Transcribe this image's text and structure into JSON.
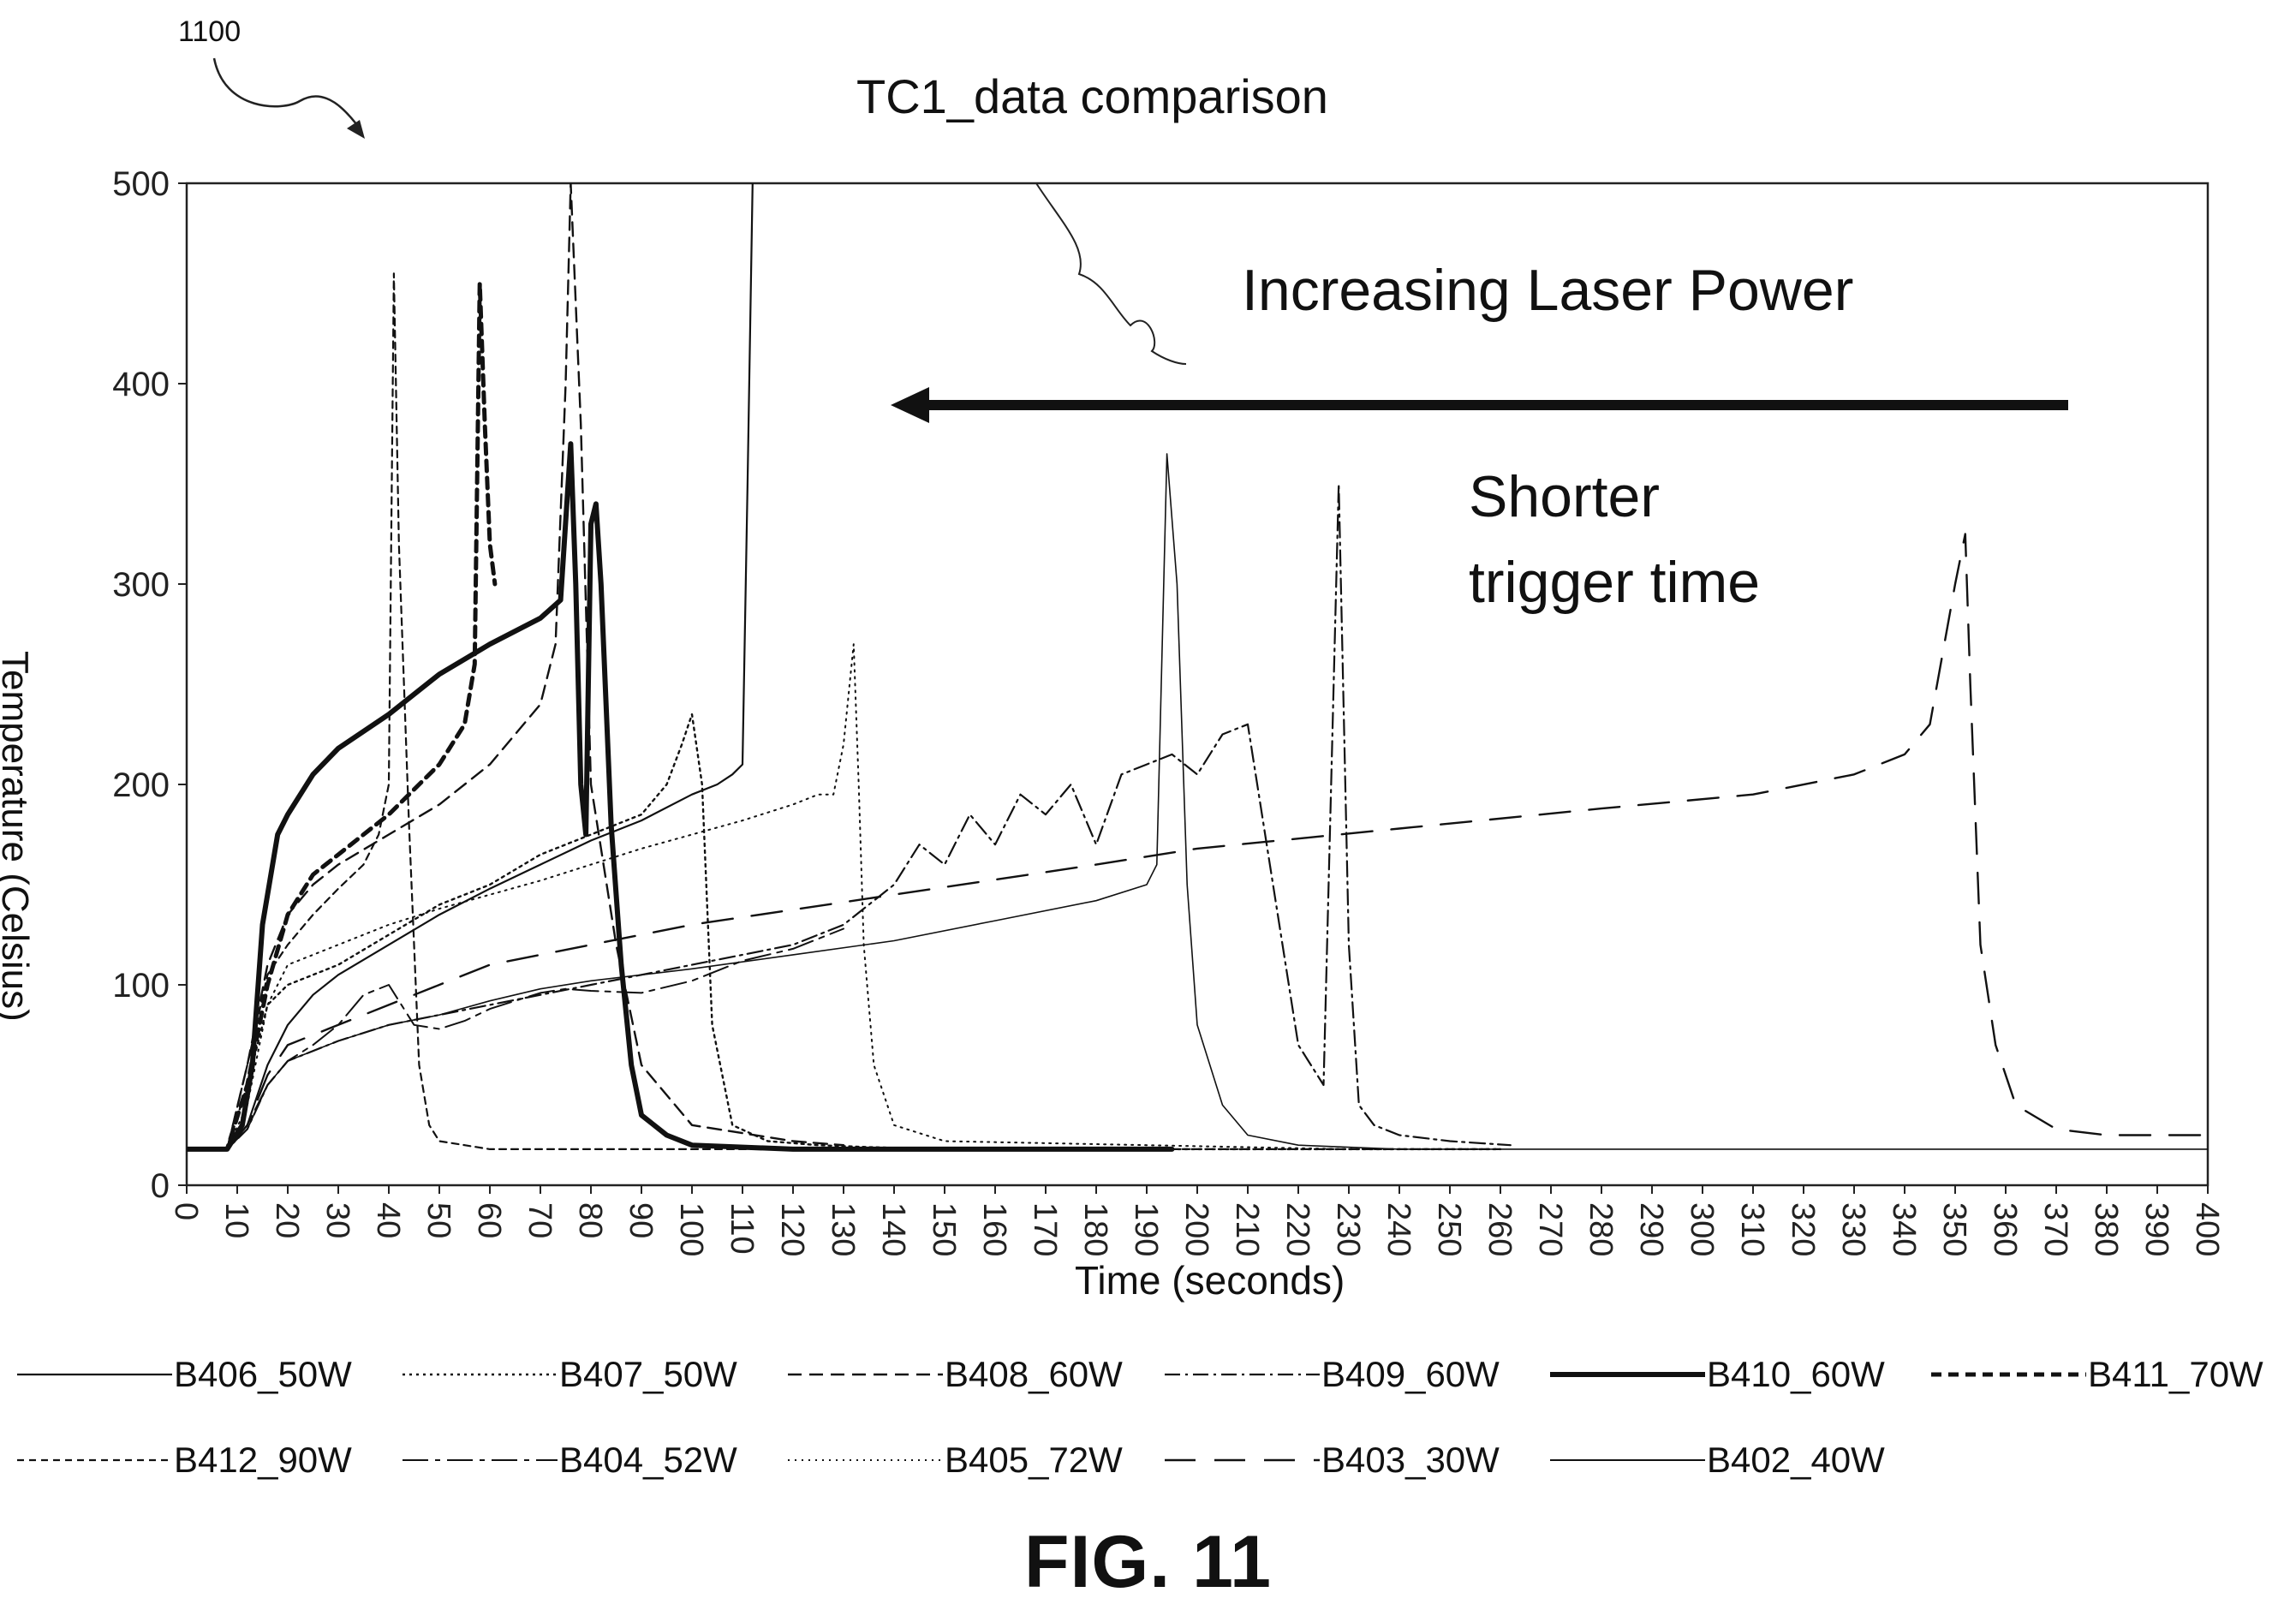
{
  "figure": {
    "ref_number": "1100",
    "caption": "FIG. 11",
    "annotation_power": "Increasing Laser Power",
    "annotation_trigger_line1": "Shorter",
    "annotation_trigger_line2": "trigger time"
  },
  "chart_data": {
    "type": "line",
    "title": "TC1_data comparison",
    "xlabel": "Time (seconds)",
    "ylabel": "Temperature (Celsius)",
    "xlim": [
      0,
      400
    ],
    "ylim": [
      0,
      500
    ],
    "xticks": [
      0,
      10,
      20,
      30,
      40,
      50,
      60,
      70,
      80,
      90,
      100,
      110,
      120,
      130,
      140,
      150,
      160,
      170,
      180,
      190,
      200,
      210,
      220,
      230,
      240,
      250,
      260,
      270,
      280,
      290,
      300,
      310,
      320,
      330,
      340,
      350,
      360,
      370,
      380,
      390,
      400
    ],
    "yticks": [
      0,
      100,
      200,
      300,
      400,
      500
    ],
    "grid": false,
    "legend_position": "bottom",
    "series": [
      {
        "name": "B406_50W",
        "style": "solid",
        "width": 2.2,
        "x": [
          0,
          8,
          12,
          16,
          20,
          25,
          30,
          40,
          50,
          60,
          70,
          80,
          90,
          100,
          105,
          108,
          110,
          111,
          112
        ],
        "y": [
          18,
          18,
          30,
          60,
          80,
          95,
          105,
          120,
          135,
          148,
          160,
          172,
          182,
          195,
          200,
          205,
          210,
          350,
          500
        ]
      },
      {
        "name": "B407_50W",
        "style": "dotted",
        "width": 2.4,
        "x": [
          0,
          8,
          12,
          16,
          20,
          30,
          40,
          50,
          60,
          70,
          80,
          90,
          95,
          98,
          100,
          102,
          104,
          108,
          115,
          125,
          135,
          150,
          190,
          200,
          260
        ],
        "y": [
          18,
          18,
          50,
          90,
          100,
          110,
          125,
          140,
          150,
          165,
          175,
          185,
          200,
          220,
          235,
          200,
          80,
          30,
          22,
          20,
          19,
          18,
          18,
          18,
          18
        ]
      },
      {
        "name": "B408_60W",
        "style": "dashed",
        "width": 2.4,
        "x": [
          0,
          8,
          12,
          16,
          20,
          25,
          30,
          40,
          50,
          60,
          70,
          73,
          75,
          76,
          78,
          80,
          85,
          90,
          100,
          120,
          130
        ],
        "y": [
          18,
          18,
          60,
          110,
          135,
          150,
          160,
          175,
          190,
          210,
          240,
          270,
          400,
          500,
          380,
          200,
          120,
          60,
          30,
          22,
          20
        ]
      },
      {
        "name": "B409_60W",
        "style": "dashdot",
        "width": 2.2,
        "x": [
          0,
          8,
          12,
          16,
          20,
          30,
          40,
          50,
          60,
          70,
          80,
          90,
          100,
          110,
          120,
          130,
          140,
          145,
          150,
          155,
          160,
          165,
          170,
          175,
          180,
          185,
          190,
          195,
          200,
          205,
          210,
          215,
          220,
          225,
          228,
          230,
          232,
          235,
          240,
          250,
          262
        ],
        "y": [
          18,
          18,
          28,
          50,
          62,
          72,
          80,
          85,
          90,
          95,
          100,
          105,
          110,
          115,
          120,
          130,
          150,
          170,
          160,
          185,
          170,
          195,
          185,
          200,
          170,
          205,
          210,
          215,
          205,
          225,
          230,
          150,
          70,
          50,
          350,
          120,
          40,
          30,
          25,
          22,
          20
        ]
      },
      {
        "name": "B410_60W",
        "style": "solid",
        "width": 6.0,
        "x": [
          0,
          8,
          11,
          13,
          15,
          18,
          20,
          25,
          30,
          40,
          50,
          60,
          70,
          74,
          76,
          77,
          78,
          79,
          80,
          81,
          82,
          84,
          86,
          88,
          90,
          95,
          100,
          120,
          150,
          180,
          195
        ],
        "y": [
          18,
          18,
          30,
          60,
          130,
          175,
          185,
          205,
          218,
          235,
          255,
          270,
          283,
          292,
          370,
          300,
          200,
          175,
          330,
          340,
          300,
          180,
          110,
          60,
          35,
          25,
          20,
          18,
          18,
          18,
          18
        ]
      },
      {
        "name": "B411_70W",
        "style": "heavydash",
        "width": 5.0,
        "x": [
          0,
          8,
          12,
          16,
          20,
          25,
          30,
          40,
          50,
          55,
          57,
          58,
          59,
          60,
          61
        ],
        "y": [
          18,
          18,
          50,
          100,
          135,
          155,
          165,
          185,
          210,
          230,
          260,
          450,
          380,
          320,
          300
        ]
      },
      {
        "name": "B412_90W",
        "style": "shortdash",
        "width": 2.2,
        "x": [
          0,
          8,
          12,
          16,
          20,
          25,
          30,
          35,
          38,
          40,
          41,
          42,
          44,
          46,
          48,
          50,
          55,
          60,
          70,
          80,
          100,
          130,
          200,
          260
        ],
        "y": [
          18,
          18,
          60,
          105,
          120,
          135,
          148,
          160,
          175,
          200,
          455,
          320,
          180,
          60,
          30,
          22,
          20,
          18,
          18,
          18,
          18,
          18,
          18,
          18
        ]
      },
      {
        "name": "B404_52W",
        "style": "longdash",
        "width": 2.0,
        "x": [
          0,
          8,
          12,
          16,
          20,
          25,
          30,
          35,
          40,
          45,
          50,
          55,
          60,
          65,
          70,
          75,
          80,
          90,
          100,
          110,
          120,
          130
        ],
        "y": [
          18,
          18,
          30,
          50,
          62,
          70,
          80,
          95,
          100,
          80,
          78,
          82,
          88,
          92,
          96,
          98,
          97,
          96,
          102,
          112,
          118,
          128
        ]
      },
      {
        "name": "B405_72W",
        "style": "fine-dot",
        "width": 2.0,
        "x": [
          0,
          8,
          12,
          16,
          20,
          30,
          40,
          50,
          60,
          70,
          80,
          90,
          100,
          110,
          120,
          125,
          128,
          130,
          132,
          133,
          134,
          136,
          140,
          150,
          190,
          230,
          260
        ],
        "y": [
          18,
          18,
          40,
          90,
          110,
          120,
          130,
          138,
          145,
          152,
          160,
          168,
          175,
          182,
          190,
          195,
          195,
          220,
          270,
          200,
          120,
          60,
          30,
          22,
          20,
          18,
          18
        ]
      },
      {
        "name": "B403_30W",
        "style": "spaced",
        "width": 2.4,
        "x": [
          0,
          8,
          12,
          16,
          20,
          30,
          40,
          50,
          60,
          80,
          100,
          140,
          180,
          200,
          240,
          280,
          310,
          330,
          340,
          345,
          350,
          352,
          353,
          355,
          358,
          362,
          370,
          380,
          400
        ],
        "y": [
          18,
          18,
          30,
          55,
          70,
          80,
          90,
          100,
          110,
          120,
          130,
          145,
          160,
          168,
          178,
          188,
          195,
          205,
          215,
          230,
          300,
          325,
          250,
          120,
          70,
          40,
          28,
          25,
          25
        ]
      },
      {
        "name": "B402_40W",
        "style": "solid",
        "width": 1.6,
        "x": [
          0,
          8,
          12,
          16,
          20,
          30,
          40,
          50,
          60,
          70,
          80,
          100,
          120,
          140,
          160,
          180,
          190,
          192,
          194,
          196,
          198,
          200,
          205,
          210,
          220,
          240,
          260,
          300,
          350,
          400
        ],
        "y": [
          18,
          18,
          28,
          50,
          62,
          72,
          80,
          85,
          92,
          98,
          102,
          108,
          115,
          122,
          132,
          142,
          150,
          160,
          365,
          300,
          150,
          80,
          40,
          25,
          20,
          18,
          18,
          18,
          18,
          18
        ]
      }
    ]
  }
}
